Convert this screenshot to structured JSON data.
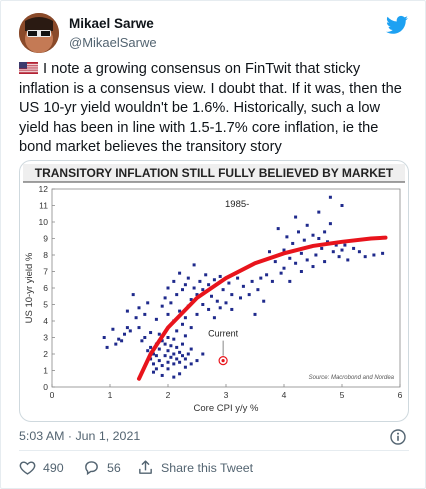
{
  "tweet": {
    "author_name": "Mikael Sarwe",
    "author_handle": "@MikaelSarwe",
    "flag_icon": "us-flag-icon",
    "text": "I note a growing consensus on FinTwit that sticky inflation is a consensus view. I doubt that. If it was, then the US 10-yr yield wouldn't be 1.6%. Historically, such a low yield has been in line with 1.5-1.7% core inflation, ie the bond market believes the transitory story",
    "timestamp": "5:03 AM · Jun 1, 2021",
    "likes": "490",
    "replies": "56",
    "share_label": "Share this Tweet",
    "brand_color": "#1da1f2",
    "like_color": "#e0245e"
  },
  "chart_data": {
    "type": "scatter",
    "title": "TRANSITORY INFLATION STILL FULLY BELIEVED BY MARKET",
    "xlabel": "Core CPI y/y %",
    "ylabel": "US 10-yr yield %",
    "xlim": [
      0,
      6
    ],
    "ylim": [
      0,
      12
    ],
    "xticks": [
      "0",
      "1",
      "2",
      "3",
      "4",
      "5",
      "6"
    ],
    "yticks": [
      "0",
      "1",
      "2",
      "3",
      "4",
      "5",
      "6",
      "7",
      "8",
      "9",
      "10",
      "11",
      "12"
    ],
    "grid": false,
    "annotations": {
      "period": "1985-",
      "current_label": "Current",
      "source": "Source: Macrobond and Nordea"
    },
    "current_point": {
      "x": 2.95,
      "y": 1.6
    },
    "point_color": "#1f2a8c",
    "fit_color": "#e8141c",
    "fit_curve": [
      [
        1.5,
        0.5
      ],
      [
        1.7,
        2.0
      ],
      [
        2.0,
        3.6
      ],
      [
        2.5,
        5.4
      ],
      [
        3.0,
        6.6
      ],
      [
        3.5,
        7.5
      ],
      [
        4.0,
        8.1
      ],
      [
        4.5,
        8.55
      ],
      [
        5.0,
        8.8
      ],
      [
        5.5,
        9.0
      ],
      [
        5.75,
        9.05
      ]
    ],
    "points": [
      [
        0.9,
        3.0
      ],
      [
        0.95,
        2.4
      ],
      [
        1.05,
        3.5
      ],
      [
        1.1,
        2.6
      ],
      [
        1.15,
        2.9
      ],
      [
        1.2,
        2.8
      ],
      [
        1.25,
        3.2
      ],
      [
        1.3,
        3.6
      ],
      [
        1.3,
        4.6
      ],
      [
        1.35,
        3.4
      ],
      [
        1.4,
        5.6
      ],
      [
        1.45,
        4.2
      ],
      [
        1.5,
        3.6
      ],
      [
        1.5,
        4.8
      ],
      [
        1.55,
        2.8
      ],
      [
        1.6,
        3.0
      ],
      [
        1.6,
        4.4
      ],
      [
        1.65,
        2.2
      ],
      [
        1.65,
        5.1
      ],
      [
        1.7,
        1.7
      ],
      [
        1.7,
        2.4
      ],
      [
        1.7,
        3.3
      ],
      [
        1.75,
        0.9
      ],
      [
        1.75,
        1.4
      ],
      [
        1.75,
        2.0
      ],
      [
        1.8,
        1.1
      ],
      [
        1.8,
        1.9
      ],
      [
        1.8,
        2.6
      ],
      [
        1.8,
        4.1
      ],
      [
        1.85,
        1.6
      ],
      [
        1.85,
        2.3
      ],
      [
        1.85,
        3.2
      ],
      [
        1.9,
        0.7
      ],
      [
        1.9,
        1.3
      ],
      [
        1.9,
        2.8
      ],
      [
        1.9,
        4.9
      ],
      [
        1.95,
        1.9
      ],
      [
        1.95,
        2.6
      ],
      [
        1.95,
        5.4
      ],
      [
        2.0,
        1.1
      ],
      [
        2.0,
        1.5
      ],
      [
        2.0,
        2.2
      ],
      [
        2.0,
        3.0
      ],
      [
        2.0,
        4.4
      ],
      [
        2.0,
        6.0
      ],
      [
        2.05,
        1.8
      ],
      [
        2.05,
        2.5
      ],
      [
        2.05,
        5.1
      ],
      [
        2.1,
        0.6
      ],
      [
        2.1,
        1.4
      ],
      [
        2.1,
        2.0
      ],
      [
        2.1,
        2.9
      ],
      [
        2.1,
        4.0
      ],
      [
        2.1,
        6.4
      ],
      [
        2.15,
        1.7
      ],
      [
        2.15,
        2.4
      ],
      [
        2.15,
        3.4
      ],
      [
        2.15,
        5.6
      ],
      [
        2.2,
        0.8
      ],
      [
        2.2,
        1.5
      ],
      [
        2.2,
        2.1
      ],
      [
        2.2,
        4.6
      ],
      [
        2.2,
        6.9
      ],
      [
        2.25,
        1.9
      ],
      [
        2.25,
        2.6
      ],
      [
        2.25,
        3.8
      ],
      [
        2.25,
        5.9
      ],
      [
        2.3,
        1.2
      ],
      [
        2.3,
        1.7
      ],
      [
        2.3,
        3.1
      ],
      [
        2.3,
        4.2
      ],
      [
        2.3,
        6.2
      ],
      [
        2.35,
        2.0
      ],
      [
        2.35,
        4.9
      ],
      [
        2.35,
        6.6
      ],
      [
        2.4,
        1.4
      ],
      [
        2.4,
        2.3
      ],
      [
        2.4,
        3.6
      ],
      [
        2.4,
        5.3
      ],
      [
        2.45,
        6.0
      ],
      [
        2.45,
        7.4
      ],
      [
        2.5,
        1.6
      ],
      [
        2.5,
        4.4
      ],
      [
        2.5,
        5.6
      ],
      [
        2.55,
        6.4
      ],
      [
        2.6,
        2.0
      ],
      [
        2.6,
        5.0
      ],
      [
        2.6,
        5.9
      ],
      [
        2.65,
        6.8
      ],
      [
        2.7,
        4.7
      ],
      [
        2.7,
        6.2
      ],
      [
        2.75,
        5.5
      ],
      [
        2.8,
        4.2
      ],
      [
        2.8,
        6.5
      ],
      [
        2.85,
        5.2
      ],
      [
        2.9,
        4.8
      ],
      [
        2.9,
        6.7
      ],
      [
        2.95,
        5.9
      ],
      [
        3.0,
        5.1
      ],
      [
        3.05,
        6.3
      ],
      [
        3.1,
        4.7
      ],
      [
        3.1,
        5.6
      ],
      [
        3.2,
        6.6
      ],
      [
        3.25,
        5.4
      ],
      [
        3.3,
        6.1
      ],
      [
        3.4,
        5.6
      ],
      [
        3.45,
        6.4
      ],
      [
        3.5,
        4.4
      ],
      [
        3.55,
        5.9
      ],
      [
        3.6,
        6.6
      ],
      [
        3.65,
        5.2
      ],
      [
        3.7,
        6.8
      ],
      [
        3.75,
        8.2
      ],
      [
        3.8,
        6.4
      ],
      [
        3.85,
        7.6
      ],
      [
        3.9,
        9.6
      ],
      [
        3.95,
        6.9
      ],
      [
        4.0,
        8.3
      ],
      [
        4.0,
        7.2
      ],
      [
        4.05,
        9.1
      ],
      [
        4.1,
        7.8
      ],
      [
        4.1,
        6.4
      ],
      [
        4.15,
        8.7
      ],
      [
        4.2,
        10.3
      ],
      [
        4.2,
        7.5
      ],
      [
        4.25,
        9.4
      ],
      [
        4.3,
        8.1
      ],
      [
        4.3,
        7.0
      ],
      [
        4.35,
        8.9
      ],
      [
        4.4,
        9.8
      ],
      [
        4.4,
        7.7
      ],
      [
        4.45,
        8.5
      ],
      [
        4.5,
        9.2
      ],
      [
        4.5,
        7.3
      ],
      [
        4.55,
        8.0
      ],
      [
        4.6,
        9.0
      ],
      [
        4.6,
        10.6
      ],
      [
        4.65,
        8.4
      ],
      [
        4.7,
        9.4
      ],
      [
        4.7,
        7.6
      ],
      [
        4.75,
        8.8
      ],
      [
        4.8,
        11.5
      ],
      [
        4.8,
        9.9
      ],
      [
        4.85,
        8.2
      ],
      [
        4.9,
        8.6
      ],
      [
        4.95,
        7.9
      ],
      [
        5.0,
        11.0
      ],
      [
        5.0,
        8.3
      ],
      [
        5.05,
        8.6
      ],
      [
        5.1,
        7.7
      ],
      [
        5.2,
        8.4
      ],
      [
        5.3,
        8.2
      ],
      [
        5.4,
        7.9
      ],
      [
        5.55,
        8.0
      ],
      [
        5.7,
        8.1
      ]
    ]
  }
}
